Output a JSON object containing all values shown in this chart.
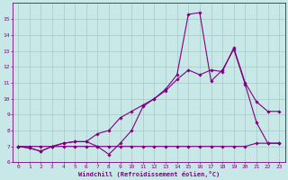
{
  "xlabel": "Windchill (Refroidissement éolien,°C)",
  "bg_color": "#c8e8e8",
  "grid_color": "#a8c8c8",
  "line_color": "#800080",
  "xlim": [
    -0.5,
    23.5
  ],
  "ylim": [
    6,
    16
  ],
  "yticks": [
    6,
    7,
    8,
    9,
    10,
    11,
    12,
    13,
    14,
    15
  ],
  "xticks": [
    0,
    1,
    2,
    3,
    4,
    5,
    6,
    7,
    8,
    9,
    10,
    11,
    12,
    13,
    14,
    15,
    16,
    17,
    18,
    19,
    20,
    21,
    22,
    23
  ],
  "line1_x": [
    0,
    1,
    2,
    3,
    4,
    5,
    6,
    7,
    8,
    9,
    10,
    11,
    12,
    13,
    14,
    15,
    16,
    17,
    18,
    19,
    20,
    21,
    22,
    23
  ],
  "line1_y": [
    7.0,
    6.9,
    6.7,
    7.0,
    7.2,
    7.3,
    7.3,
    7.0,
    6.5,
    7.2,
    8.0,
    9.5,
    10.0,
    10.6,
    11.5,
    15.3,
    15.4,
    11.1,
    11.8,
    13.1,
    10.9,
    8.5,
    7.2,
    7.2
  ],
  "line2_x": [
    0,
    1,
    2,
    3,
    4,
    5,
    6,
    7,
    8,
    9,
    10,
    11,
    12,
    13,
    14,
    15,
    16,
    17,
    18,
    19,
    20,
    21,
    22,
    23
  ],
  "line2_y": [
    7.0,
    6.9,
    6.7,
    7.0,
    7.2,
    7.3,
    7.3,
    7.8,
    8.0,
    8.8,
    9.2,
    9.6,
    10.0,
    10.5,
    11.2,
    11.8,
    11.5,
    11.8,
    11.7,
    13.2,
    11.0,
    9.8,
    9.2,
    9.2
  ],
  "line3_x": [
    0,
    1,
    2,
    3,
    4,
    5,
    6,
    7,
    8,
    9,
    10,
    11,
    12,
    13,
    14,
    15,
    16,
    17,
    18,
    19,
    20,
    21,
    22,
    23
  ],
  "line3_y": [
    7.0,
    7.0,
    7.0,
    7.0,
    7.0,
    7.0,
    7.0,
    7.0,
    7.0,
    7.0,
    7.0,
    7.0,
    7.0,
    7.0,
    7.0,
    7.0,
    7.0,
    7.0,
    7.0,
    7.0,
    7.0,
    7.2,
    7.2,
    7.2
  ],
  "label_fontsize": 4.5,
  "xlabel_fontsize": 5.0,
  "lw": 0.8,
  "ms": 1.8
}
